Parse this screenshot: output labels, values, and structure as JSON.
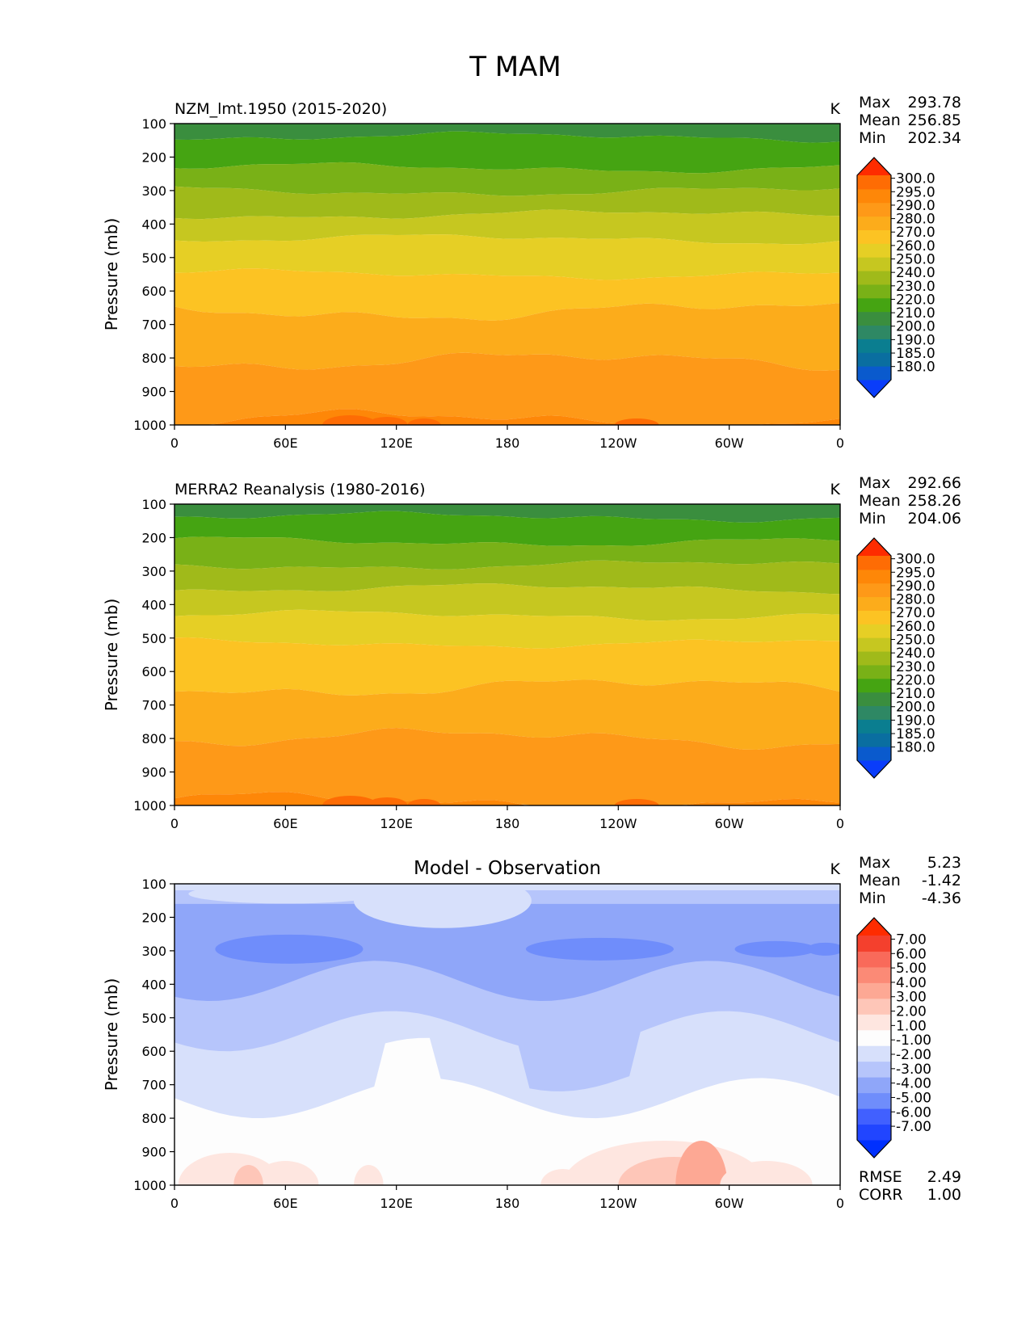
{
  "figure": {
    "title": "T MAM"
  },
  "y_axis_label": "Pressure (mb)",
  "x_ticks": [
    "0",
    "60E",
    "120E",
    "180",
    "120W",
    "60W",
    "0"
  ],
  "y_ticks": [
    "100",
    "200",
    "300",
    "400",
    "500",
    "600",
    "700",
    "800",
    "900",
    "1000"
  ],
  "stat_labels": {
    "max": "Max",
    "mean": "Mean",
    "min": "Min",
    "rmse": "RMSE",
    "corr": "CORR"
  },
  "chart_data": [
    {
      "type": "heatmap",
      "title": "NZM_lmt.1950 (2015-2020)",
      "units": "K",
      "ylabel": "Pressure (mb)",
      "xlim": [
        0,
        360
      ],
      "ylim": [
        1000,
        100
      ],
      "stats": {
        "max": "293.78",
        "mean": "256.85",
        "min": "202.34"
      },
      "colorbar_levels": [
        "180.0",
        "185.0",
        "190.0",
        "200.0",
        "210.0",
        "220.0",
        "230.0",
        "240.0",
        "250.0",
        "260.0",
        "270.0",
        "280.0",
        "290.0",
        "295.0",
        "300.0"
      ],
      "colorbar_colors": [
        "#0a3dfa",
        "#0a5acd",
        "#0a6ea0",
        "#0a7e90",
        "#2e8864",
        "#3a8e3e",
        "#45a412",
        "#79b117",
        "#a0ba1a",
        "#c6c720",
        "#e6cf25",
        "#fcc323",
        "#fcac1b",
        "#fe9918",
        "#fe8708",
        "#fe6c04",
        "#fe2c00"
      ],
      "contour_pressure": [
        100,
        140,
        232,
        302,
        372,
        445,
        550,
        660,
        810,
        985
      ]
    },
    {
      "type": "heatmap",
      "title": "MERRA2 Reanalysis (1980-2016)",
      "units": "K",
      "ylabel": "Pressure (mb)",
      "xlim": [
        0,
        360
      ],
      "ylim": [
        1000,
        100
      ],
      "stats": {
        "max": "292.66",
        "mean": "258.26",
        "min": "204.06"
      },
      "colorbar_levels": [
        "180.0",
        "185.0",
        "190.0",
        "200.0",
        "210.0",
        "220.0",
        "230.0",
        "240.0",
        "250.0",
        "260.0",
        "270.0",
        "280.0",
        "290.0",
        "295.0",
        "300.0"
      ],
      "colorbar_colors": [
        "#0a3dfa",
        "#0a5acd",
        "#0a6ea0",
        "#0a7e90",
        "#2e8864",
        "#3a8e3e",
        "#45a412",
        "#79b117",
        "#a0ba1a",
        "#c6c720",
        "#e6cf25",
        "#fcc323",
        "#fcac1b",
        "#fe9918",
        "#fe8708",
        "#fe6c04",
        "#fe2c00"
      ],
      "contour_pressure": [
        100,
        138,
        212,
        282,
        352,
        432,
        515,
        647,
        800,
        990
      ]
    },
    {
      "type": "heatmap",
      "title": "Model - Observation",
      "units": "K",
      "ylabel": "Pressure (mb)",
      "xlim": [
        0,
        360
      ],
      "ylim": [
        1000,
        100
      ],
      "stats": {
        "max": "5.23",
        "mean": "-1.42",
        "min": "-4.36",
        "rmse": "2.49",
        "corr": "1.00"
      },
      "colorbar_levels": [
        "-7.00",
        "-6.00",
        "-5.00",
        "-4.00",
        "-3.00",
        "-2.00",
        "-1.00",
        "1.00",
        "2.00",
        "3.00",
        "4.00",
        "5.00",
        "6.00",
        "7.00"
      ],
      "colorbar_colors": [
        "#0030fe",
        "#2145ff",
        "#4160ff",
        "#6f8dfb",
        "#8fa6f9",
        "#b6c5fb",
        "#d7e0fb",
        "#fdfdfd",
        "#fee6e0",
        "#fec6b8",
        "#fda894",
        "#fb8a76",
        "#f96a5a",
        "#f4402d",
        "#fe2c00"
      ]
    }
  ]
}
